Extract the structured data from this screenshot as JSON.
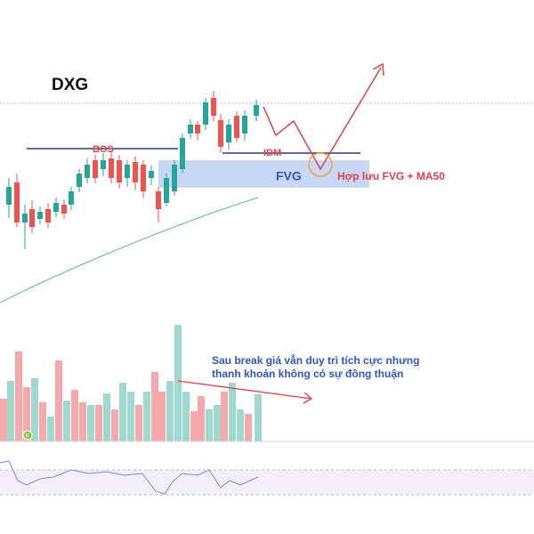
{
  "title": "DXG",
  "annotations": {
    "bos": "BOS",
    "idm": "IDM",
    "fvg": "FVG",
    "confluence": "Hợp lưu FVG + MA50",
    "volume_note": [
      "Sau break giá vẫn duy trì tích cực nhưng",
      "thanh khoản không có sự đồng thuận"
    ]
  },
  "marker": "F"
}
